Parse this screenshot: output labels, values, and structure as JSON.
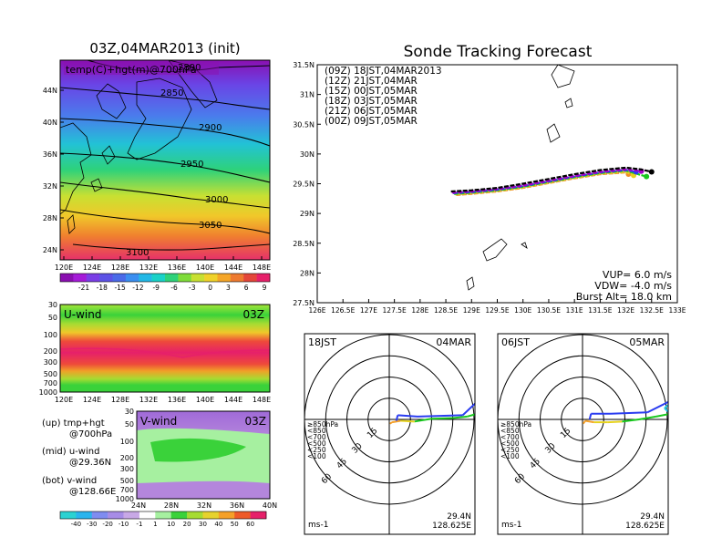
{
  "colors": {
    "temp_scale": [
      "#8a0fb0",
      "#a51bd8",
      "#7a3ee6",
      "#5c52e6",
      "#4a6ae8",
      "#3a8ef0",
      "#22b8e6",
      "#19d2c8",
      "#2ed27a",
      "#7fdc3a",
      "#c8e032",
      "#f0d22a",
      "#f5a628",
      "#ee7a30",
      "#e4463a",
      "#e6206a"
    ],
    "wind_scale": [
      "#2ad2d2",
      "#2ab4ee",
      "#7f8cf0",
      "#a78ce6",
      "#c8a8e6",
      "#ffffff",
      "#a6f0a0",
      "#3ad23a",
      "#a6dc32",
      "#e6d22e",
      "#f5a028",
      "#ee5a28",
      "#e6206a"
    ]
  },
  "map_panel": {
    "title": "03Z,04MAR2013 (init)",
    "subtitle": "temp(C)+hgt(m)@700hPa",
    "lat_ticks": [
      "44N",
      "40N",
      "36N",
      "32N",
      "28N",
      "24N"
    ],
    "lon_ticks": [
      "120E",
      "124E",
      "128E",
      "132E",
      "136E",
      "140E",
      "144E",
      "148E"
    ],
    "contour_labels": [
      "2890",
      "2850",
      "2900",
      "2950",
      "3000",
      "3050",
      "3100"
    ],
    "colorbar_labels": [
      "-21",
      "-18",
      "-15",
      "-12",
      "-9",
      "-6",
      "-3",
      "0",
      "3",
      "6",
      "9"
    ]
  },
  "u_panel": {
    "label": "U-wind",
    "time": "03Z",
    "p_ticks": [
      "30",
      "50",
      "100",
      "200",
      "300",
      "500",
      "700",
      "1000"
    ],
    "lon_ticks": [
      "120E",
      "124E",
      "128E",
      "132E",
      "136E",
      "140E",
      "144E",
      "148E"
    ]
  },
  "v_panel": {
    "label": "V-wind",
    "time": "03Z",
    "p_ticks": [
      "30",
      "50",
      "100",
      "200",
      "300",
      "500",
      "700",
      "1000"
    ],
    "lat_ticks": [
      "24N",
      "28N",
      "32N",
      "36N",
      "40N"
    ]
  },
  "legend_text": {
    "up": "(up) tmp+hgt",
    "up2": "@700hPa",
    "mid": "(mid) u-wind",
    "mid2": "@29.36N",
    "bot": "(bot) v-wind",
    "bot2": "@128.66E"
  },
  "wind_colorbar_labels": [
    "-40",
    "-30",
    "-20",
    "-10",
    "-1",
    "1",
    "10",
    "20",
    "30",
    "40",
    "50",
    "60"
  ],
  "chart_data": [
    {
      "type": "line",
      "title": "Sonde Tracking Forecast",
      "xlim": [
        126,
        133
      ],
      "ylim": [
        27.5,
        31.5
      ],
      "x_ticks": [
        "126E",
        "126.5E",
        "127E",
        "127.5E",
        "128E",
        "128.5E",
        "129E",
        "129.5E",
        "130E",
        "130.5E",
        "131E",
        "131.5E",
        "132E",
        "132.5E",
        "133E"
      ],
      "y_ticks": [
        "31.5N",
        "31N",
        "30.5N",
        "30N",
        "29.5N",
        "29N",
        "28.5N",
        "28N",
        "27.5N"
      ],
      "series": [
        {
          "name": "(09Z)  18JST,04MAR2013",
          "color": "#000000",
          "x": [
            128.6,
            129.0,
            129.5,
            130.0,
            130.5,
            131.0,
            131.5,
            132.0,
            132.3,
            132.5
          ],
          "y": [
            29.37,
            29.39,
            29.43,
            29.5,
            29.58,
            29.66,
            29.73,
            29.77,
            29.74,
            29.7
          ]
        },
        {
          "name": "(12Z)  21JST,04MAR",
          "color": "#a400c8",
          "x": [
            128.62,
            129.0,
            129.5,
            130.0,
            130.5,
            131.0,
            131.5,
            132.0,
            132.3
          ],
          "y": [
            29.35,
            29.37,
            29.41,
            29.47,
            29.55,
            29.63,
            29.7,
            29.74,
            29.71
          ]
        },
        {
          "name": "(15Z)  00JST,05MAR",
          "color": "#2a3cf0",
          "x": [
            128.64,
            129.0,
            129.5,
            130.0,
            130.5,
            131.0,
            131.5,
            132.0,
            132.2
          ],
          "y": [
            29.34,
            29.36,
            29.4,
            29.46,
            29.54,
            29.62,
            29.69,
            29.73,
            29.7
          ]
        },
        {
          "name": "(18Z)  03JST,05MAR",
          "color": "#19c81e",
          "x": [
            128.66,
            129.0,
            129.5,
            130.0,
            130.5,
            131.0,
            131.5,
            132.0,
            132.4
          ],
          "y": [
            29.33,
            29.35,
            29.39,
            29.45,
            29.53,
            29.61,
            29.68,
            29.72,
            29.62
          ]
        },
        {
          "name": "(21Z)  06JST,05MAR",
          "color": "#e6d21e",
          "x": [
            128.68,
            129.0,
            129.5,
            130.0,
            130.5,
            131.0,
            131.5,
            132.0,
            132.15
          ],
          "y": [
            29.32,
            29.34,
            29.38,
            29.44,
            29.52,
            29.6,
            29.67,
            29.7,
            29.64
          ]
        },
        {
          "name": "(00Z)  09JST,05MAR",
          "color": "#f08c28",
          "x": [
            128.7,
            129.0,
            129.5,
            130.0,
            130.5,
            131.0,
            131.5,
            132.0,
            132.05
          ],
          "y": [
            29.31,
            29.33,
            29.37,
            29.43,
            29.51,
            29.59,
            29.66,
            29.69,
            29.66
          ]
        }
      ],
      "annotations": [
        "VUP=  6.0  m/s",
        "VDW= -4.0  m/s",
        "Burst Alt=  18.0  km"
      ]
    },
    {
      "type": "scatter",
      "title": "",
      "time_left": "18JST",
      "time_right": "04MAR",
      "location": [
        "29.4N",
        "128.625E"
      ],
      "unit": "ms-1",
      "ring_labels": [
        "15",
        "30",
        "45",
        "60"
      ],
      "legend": [
        {
          "label": "≥850hPa",
          "color": "#e6140a"
        },
        {
          "label": "<850",
          "color": "#f5a028"
        },
        {
          "label": "<700",
          "color": "#e6d21e"
        },
        {
          "label": "<500",
          "color": "#19c81e"
        },
        {
          "label": "<250",
          "color": "#1ec8e6"
        },
        {
          "label": "<100",
          "color": "#2a3cf0"
        }
      ],
      "hodograph": [
        {
          "u": 0.5,
          "v": -3,
          "color": "#e6140a"
        },
        {
          "u": 2,
          "v": -2,
          "color": "#f5a028"
        },
        {
          "u": 8,
          "v": -1,
          "color": "#f5a028"
        },
        {
          "u": 18,
          "v": -1.5,
          "color": "#e6d21e"
        },
        {
          "u": 30,
          "v": 0.5,
          "color": "#19c81e"
        },
        {
          "u": 45,
          "v": 1,
          "color": "#19c81e"
        },
        {
          "u": 55,
          "v": 2,
          "color": "#19c81e"
        },
        {
          "u": 62,
          "v": 4,
          "color": "#19c81e"
        },
        {
          "u": 62,
          "v": 12,
          "color": "#1ec8e6"
        },
        {
          "u": 68,
          "v": 18,
          "color": "#1ec8e6"
        },
        {
          "u": 52,
          "v": 3,
          "color": "#2a3cf0"
        },
        {
          "u": 20,
          "v": 2,
          "color": "#2a3cf0"
        },
        {
          "u": 6,
          "v": 3,
          "color": "#2a3cf0"
        },
        {
          "u": 5,
          "v": -1,
          "color": "#2a3cf0"
        }
      ]
    },
    {
      "type": "scatter",
      "title": "",
      "time_left": "06JST",
      "time_right": "05MAR",
      "location": [
        "29.4N",
        "128.625E"
      ],
      "unit": "ms-1",
      "ring_labels": [
        "15",
        "30",
        "45",
        "60"
      ],
      "legend": [
        {
          "label": "≥850hPa",
          "color": "#e6140a"
        },
        {
          "label": "<850",
          "color": "#f5a028"
        },
        {
          "label": "<700",
          "color": "#e6d21e"
        },
        {
          "label": "<500",
          "color": "#19c81e"
        },
        {
          "label": "<250",
          "color": "#1ec8e6"
        },
        {
          "label": "<100",
          "color": "#2a3cf0"
        }
      ],
      "hodograph": [
        {
          "u": 0.5,
          "v": -3,
          "color": "#e6140a"
        },
        {
          "u": 2,
          "v": -1,
          "color": "#f5a028"
        },
        {
          "u": 8,
          "v": -2,
          "color": "#f5a028"
        },
        {
          "u": 18,
          "v": -2,
          "color": "#e6d21e"
        },
        {
          "u": 28,
          "v": -1.5,
          "color": "#e6d21e"
        },
        {
          "u": 40,
          "v": 0,
          "color": "#19c81e"
        },
        {
          "u": 52,
          "v": 2,
          "color": "#19c81e"
        },
        {
          "u": 62,
          "v": 4,
          "color": "#19c81e"
        },
        {
          "u": 58,
          "v": 8,
          "color": "#1ec8e6"
        },
        {
          "u": 68,
          "v": 16,
          "color": "#1ec8e6"
        },
        {
          "u": 46,
          "v": 5,
          "color": "#2a3cf0"
        },
        {
          "u": 20,
          "v": 4,
          "color": "#2a3cf0"
        },
        {
          "u": 6,
          "v": 4,
          "color": "#2a3cf0"
        },
        {
          "u": 5,
          "v": 0,
          "color": "#2a3cf0"
        }
      ]
    }
  ]
}
